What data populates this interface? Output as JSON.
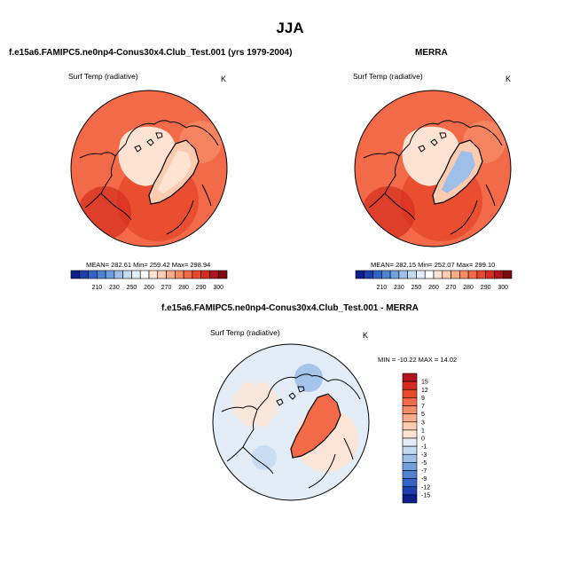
{
  "title": "JJA",
  "colors": {
    "warm": [
      "#ffe3d2",
      "#fccbb0",
      "#fbad8b",
      "#f78b66",
      "#f26a48",
      "#e8492e",
      "#d42d1f",
      "#b0141c",
      "#7a0a0e"
    ],
    "cool": [
      "#e2edf8",
      "#c5d9f1",
      "#9dbfe8",
      "#6f9fdc",
      "#4f83d2",
      "#3263c8",
      "#1e3fae",
      "#0c1f8c"
    ],
    "land": "#000000"
  },
  "panels": {
    "model": {
      "title": "f.e15a6.FAMIPC5.ne0np4-Conus30x4.Club_Test.001 (yrs 1979-2004)",
      "variable": "Surf Temp (radiative)",
      "unit": "K",
      "stats": "MEAN= 282.61   Min= 259.42   Max= 298.94"
    },
    "obs": {
      "title": "MERRA",
      "variable": "Surf Temp (radiative)",
      "unit": "K",
      "stats": "MEAN= 282.15   Min= 252.07   Max= 299.10"
    },
    "diff": {
      "title": "f.e15a6.FAMIPC5.ne0np4-Conus30x4.Club_Test.001 - MERRA",
      "variable": "Surf Temp (radiative)",
      "unit": "K",
      "stats": "MIN = -10.22 MAX =  14.02"
    }
  },
  "chart_data": [
    {
      "type": "heatmap",
      "title": "f.e15a6.FAMIPC5.ne0np4-Conus30x4.Club_Test.001 (yrs 1979-2004)",
      "variable": "Surf Temp (radiative)",
      "units": "K",
      "projection": "north polar stereographic",
      "mean": 282.61,
      "min": 259.42,
      "max": 298.94,
      "colorbar_ticks": [
        "210",
        "230",
        "250",
        "260",
        "270",
        "280",
        "290",
        "300"
      ],
      "colorbar_levels": 18
    },
    {
      "type": "heatmap",
      "title": "MERRA",
      "variable": "Surf Temp (radiative)",
      "units": "K",
      "projection": "north polar stereographic",
      "mean": 282.15,
      "min": 252.07,
      "max": 299.1,
      "colorbar_ticks": [
        "210",
        "230",
        "250",
        "260",
        "270",
        "280",
        "290",
        "300"
      ],
      "colorbar_levels": 18
    },
    {
      "type": "heatmap",
      "title": "f.e15a6.FAMIPC5.ne0np4-Conus30x4.Club_Test.001 - MERRA",
      "variable": "Surf Temp (radiative)",
      "units": "K",
      "projection": "north polar stereographic",
      "min": -10.22,
      "max": 14.02,
      "colorbar_ticks": [
        "15",
        "12",
        "9",
        "7",
        "5",
        "3",
        "1",
        "0",
        "-1",
        "-3",
        "-5",
        "-7",
        "-9",
        "-12",
        "-15"
      ],
      "colorbar_levels": 16
    }
  ]
}
